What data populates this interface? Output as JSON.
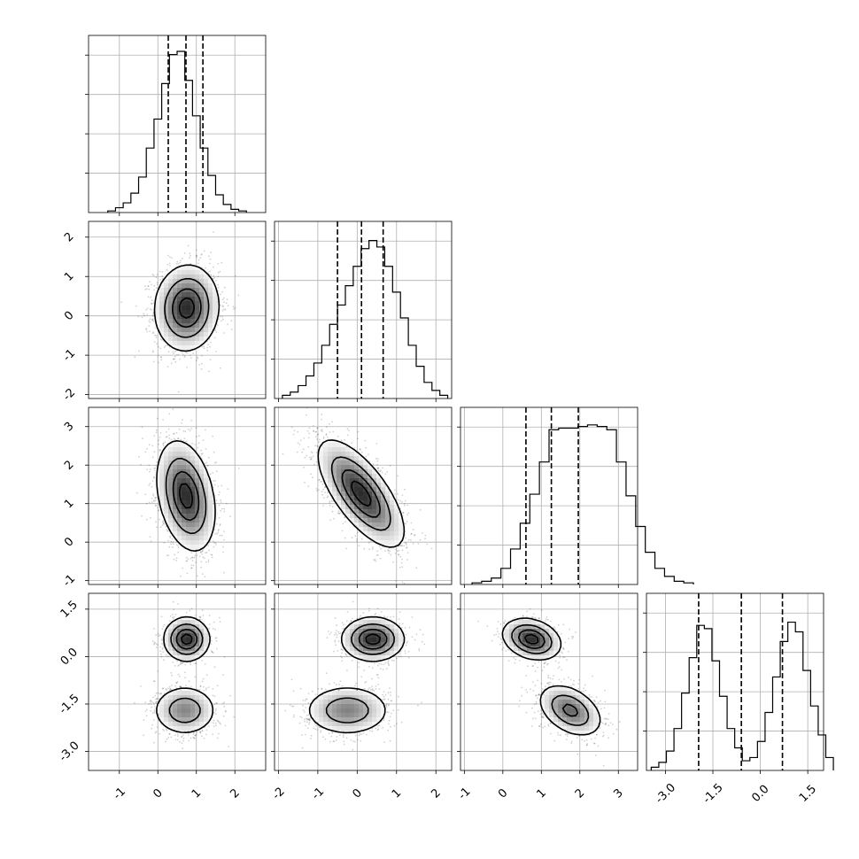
{
  "chart_data": {
    "type": "corner",
    "n_params": 4,
    "grid": true,
    "quantile_lines": "dashed",
    "contour_levels": 4,
    "ranges": [
      [
        -1.8,
        2.8
      ],
      [
        -2.1,
        2.4
      ],
      [
        -1.1,
        3.5
      ],
      [
        -3.6,
        2.0
      ]
    ],
    "ticks": [
      {
        "values": [
          -1,
          0,
          1,
          2
        ],
        "labels": [
          "-1",
          "0",
          "1",
          "2"
        ]
      },
      {
        "values": [
          -2,
          -1,
          0,
          1,
          2
        ],
        "labels": [
          "-2",
          "-1",
          "0",
          "1",
          "2"
        ]
      },
      {
        "values": [
          -1,
          0,
          1,
          2,
          3
        ],
        "labels": [
          "-1",
          "0",
          "1",
          "2",
          "3"
        ]
      },
      {
        "values": [
          -3.0,
          -1.5,
          0.0,
          1.5
        ],
        "labels": [
          "-3.0",
          "-1.5",
          "0.0",
          "1.5"
        ]
      }
    ],
    "quantiles": [
      [
        0.27,
        0.73,
        1.17
      ],
      [
        -0.5,
        0.11,
        0.66
      ],
      [
        0.6,
        1.26,
        1.96
      ],
      [
        -1.95,
        -0.6,
        0.7
      ]
    ],
    "histograms": [
      {
        "edges_start": -1.3,
        "bin_width": 0.2,
        "counts": [
          0.01,
          0.03,
          0.06,
          0.12,
          0.22,
          0.4,
          0.58,
          0.8,
          0.98,
          1.0,
          0.82,
          0.6,
          0.4,
          0.23,
          0.11,
          0.05,
          0.02,
          0.01
        ]
      },
      {
        "edges_start": -1.9,
        "bin_width": 0.2,
        "counts": [
          0.02,
          0.04,
          0.08,
          0.14,
          0.22,
          0.33,
          0.46,
          0.58,
          0.7,
          0.82,
          0.93,
          0.98,
          0.94,
          0.82,
          0.66,
          0.5,
          0.33,
          0.2,
          0.1,
          0.05,
          0.02
        ]
      },
      {
        "edges_start": -0.8,
        "bin_width": 0.25,
        "counts": [
          0.01,
          0.02,
          0.04,
          0.1,
          0.22,
          0.38,
          0.56,
          0.76,
          0.96,
          0.97,
          0.97,
          0.98,
          0.99,
          0.98,
          0.96,
          0.76,
          0.55,
          0.36,
          0.2,
          0.1,
          0.05,
          0.02,
          0.01
        ]
      },
      {
        "edges_start": -3.45,
        "bin_width": 0.24,
        "counts": [
          0.02,
          0.05,
          0.12,
          0.26,
          0.48,
          0.7,
          0.9,
          0.88,
          0.68,
          0.46,
          0.26,
          0.14,
          0.06,
          0.08,
          0.18,
          0.36,
          0.58,
          0.8,
          0.92,
          0.86,
          0.62,
          0.4,
          0.22,
          0.08
        ]
      }
    ],
    "blobs": [
      {
        "i": 1,
        "j": 0,
        "modes": [
          {
            "mx": 0.75,
            "my": 0.2,
            "sx": 0.42,
            "sy": 0.55,
            "r": 0.05,
            "w": 1
          }
        ]
      },
      {
        "i": 2,
        "j": 0,
        "modes": [
          {
            "mx": 0.73,
            "my": 1.2,
            "sx": 0.38,
            "sy": 0.72,
            "r": -0.3,
            "w": 1
          }
        ]
      },
      {
        "i": 2,
        "j": 1,
        "modes": [
          {
            "mx": 0.1,
            "my": 1.26,
            "sx": 0.55,
            "sy": 0.7,
            "r": -0.7,
            "w": 1
          }
        ]
      },
      {
        "i": 3,
        "j": 0,
        "modes": [
          {
            "mx": 0.75,
            "my": 0.55,
            "sx": 0.3,
            "sy": 0.35,
            "r": 0.0,
            "w": 0.5
          },
          {
            "mx": 0.7,
            "my": -1.7,
            "sx": 0.42,
            "sy": 0.4,
            "r": 0.0,
            "w": 0.5
          }
        ]
      },
      {
        "i": 3,
        "j": 1,
        "modes": [
          {
            "mx": 0.4,
            "my": 0.55,
            "sx": 0.4,
            "sy": 0.35,
            "r": 0.0,
            "w": 0.5
          },
          {
            "mx": -0.25,
            "my": -1.7,
            "sx": 0.55,
            "sy": 0.4,
            "r": 0.0,
            "w": 0.5
          }
        ]
      },
      {
        "i": 3,
        "j": 2,
        "modes": [
          {
            "mx": 0.75,
            "my": 0.55,
            "sx": 0.38,
            "sy": 0.33,
            "r": -0.25,
            "w": 0.5
          },
          {
            "mx": 1.75,
            "my": -1.7,
            "sx": 0.42,
            "sy": 0.42,
            "r": -0.4,
            "w": 0.5
          }
        ]
      }
    ]
  }
}
